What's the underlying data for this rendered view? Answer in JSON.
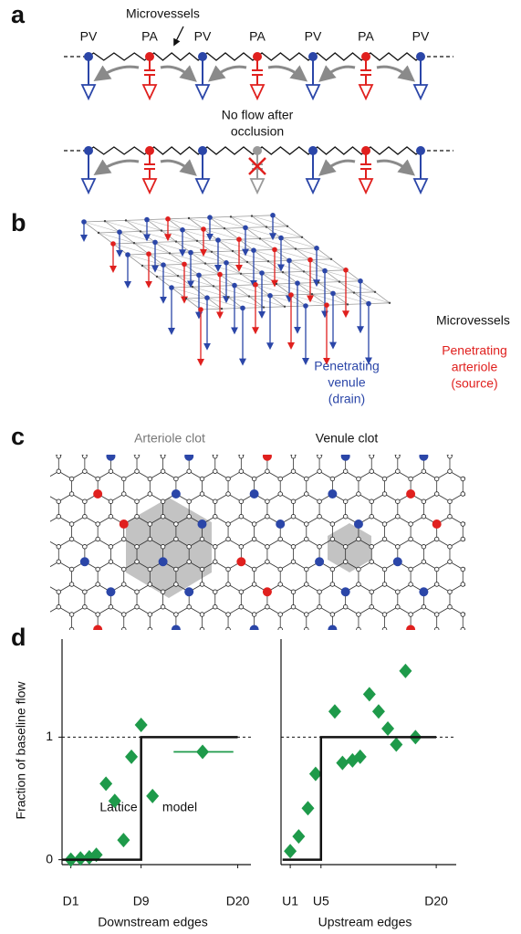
{
  "panel_a": {
    "label": "a",
    "microvessels": "Microvessels",
    "vessel_labels": [
      "PV",
      "PA",
      "PV",
      "PA",
      "PV",
      "PA",
      "PV"
    ],
    "occlusion_note": [
      "No flow after",
      "occlusion"
    ]
  },
  "panel_b": {
    "label": "b",
    "microvessels": "Microvessels",
    "venule": [
      "Penetrating",
      "venule",
      "(drain)"
    ],
    "arteriole": [
      "Penetrating",
      "arteriole",
      "(source)"
    ]
  },
  "panel_c": {
    "label": "c",
    "arteriole_clot": "Arteriole clot",
    "venule_clot": "Venule clot"
  },
  "panel_d": {
    "label": "d"
  },
  "chart_data": [
    {
      "type": "scatter",
      "ylabel": "Fraction of baseline flow",
      "xlabel": "Downstream edges",
      "xlim": [
        0,
        21.5
      ],
      "ylim": [
        -0.04,
        1.8
      ],
      "xticks": [
        {
          "value": 1,
          "label": "D1"
        },
        {
          "value": 9,
          "label": "D9"
        },
        {
          "value": 20,
          "label": "D20"
        }
      ],
      "yticks": [
        0,
        1
      ],
      "reference_line": 1,
      "series": [
        {
          "color": "#1e9a4a",
          "marker": "diamond",
          "x": [
            1,
            2.1,
            3.1,
            3.9,
            5.0,
            6.0,
            7.0,
            7.9,
            9.0,
            10.3,
            16.0
          ],
          "values": [
            0,
            0.01,
            0.02,
            0.04,
            0.62,
            0.48,
            0.16,
            0.84,
            1.1,
            0.52,
            0.88
          ]
        },
        {
          "color": "#1e9a4a",
          "marker": "none",
          "x": [
            12.7,
            19.5
          ],
          "values": [
            0.88,
            0.88
          ]
        },
        {
          "color": "#111111",
          "marker": "none",
          "x": [
            0,
            9,
            9,
            20
          ],
          "values": [
            0,
            0,
            1,
            1
          ]
        }
      ],
      "annotations": [
        "Lattice",
        "model"
      ]
    },
    {
      "type": "scatter",
      "xlabel": "Upstream edges",
      "xlim": [
        -0.2,
        22.6
      ],
      "ylim": [
        -0.04,
        1.8
      ],
      "xticks": [
        {
          "value": 1,
          "label": "U1"
        },
        {
          "value": 5,
          "label": "U5"
        },
        {
          "value": 20,
          "label": "D20"
        }
      ],
      "reference_line": 1,
      "series": [
        {
          "color": "#1e9a4a",
          "marker": "diamond",
          "x": [
            1,
            2.1,
            3.3,
            4.3,
            6.8,
            7.8,
            9.1,
            10.1,
            11.3,
            12.5,
            13.7,
            14.8,
            16.0,
            17.3
          ],
          "values": [
            0.07,
            0.19,
            0.42,
            0.7,
            1.21,
            0.79,
            0.81,
            0.84,
            1.35,
            1.21,
            1.07,
            0.94,
            1.54,
            1.0
          ]
        },
        {
          "color": "#111111",
          "marker": "none",
          "x": [
            0,
            5,
            5,
            20
          ],
          "values": [
            0,
            0,
            1,
            1
          ]
        }
      ]
    }
  ]
}
